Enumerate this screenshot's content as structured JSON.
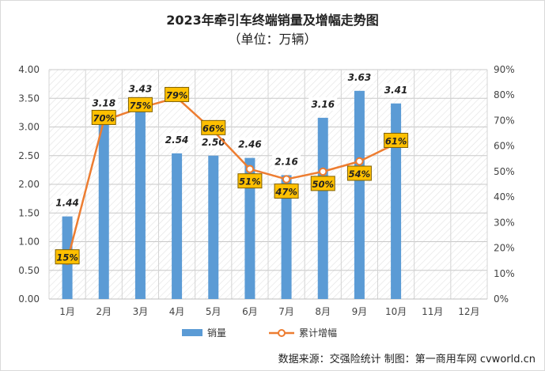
{
  "chart_data": {
    "type": "bar",
    "title": "2023年牵引车终端销量及增幅走势图",
    "subtitle": "（单位：万辆）",
    "categories": [
      "1月",
      "2月",
      "3月",
      "4月",
      "5月",
      "6月",
      "7月",
      "8月",
      "9月",
      "10月",
      "11月",
      "12月"
    ],
    "series": [
      {
        "name": "销量",
        "type": "bar",
        "axis": "left",
        "values": [
          1.44,
          3.18,
          3.43,
          2.54,
          2.5,
          2.46,
          2.16,
          3.16,
          3.63,
          3.41,
          null,
          null
        ],
        "labels": [
          "1.44",
          "3.18",
          "3.43",
          "2.54",
          "2.50",
          "2.46",
          "2.16",
          "3.16",
          "3.63",
          "3.41",
          "",
          ""
        ],
        "color": "#5b9bd5"
      },
      {
        "name": "累计增幅",
        "type": "line",
        "axis": "right",
        "values": [
          15,
          70,
          75,
          79,
          66,
          51,
          47,
          50,
          54,
          61,
          null,
          null
        ],
        "labels": [
          "15%",
          "70%",
          "75%",
          "79%",
          "66%",
          "51%",
          "47%",
          "50%",
          "54%",
          "61%",
          "",
          ""
        ],
        "color": "#ed7d31"
      }
    ],
    "yLeft": {
      "min": 0,
      "max": 4,
      "ticks": [
        "0.00",
        "0.50",
        "1.00",
        "1.50",
        "2.00",
        "2.50",
        "3.00",
        "3.50",
        "4.00"
      ]
    },
    "yRight": {
      "min": 0,
      "max": 90,
      "ticks": [
        "0%",
        "10%",
        "20%",
        "30%",
        "40%",
        "50%",
        "60%",
        "70%",
        "80%",
        "90%"
      ]
    },
    "legend": {
      "position": "bottom"
    },
    "grid": true
  },
  "source": "数据来源：交强险统计  制图：第一商用车网 cvworld.cn"
}
